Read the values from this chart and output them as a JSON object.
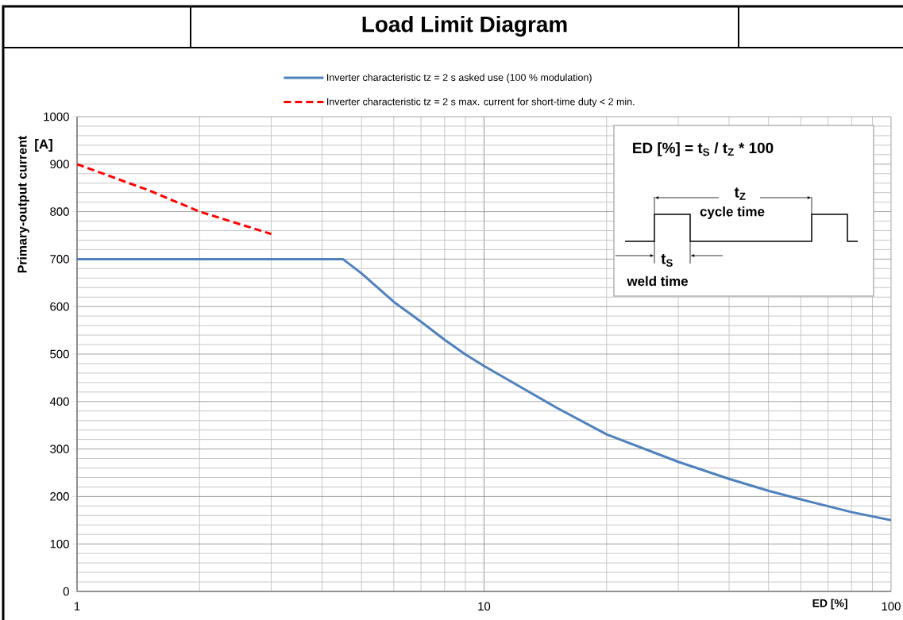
{
  "chart_data": {
    "type": "line",
    "title": "Load Limit Diagram",
    "xlabel": "ED [%]",
    "ylabel": "Primary-output current",
    "annotations": [
      "[A]",
      "ED [%]  = t$_{S}$ / t$_{Z}$ * 100",
      "t$_{Z}$",
      "cycle time",
      "t$_{S}$",
      "weld time"
    ],
    "log": "x",
    "xlim": [
      1,
      100
    ],
    "xticks": [
      1,
      10,
      100
    ],
    "ylim": [
      0,
      1000
    ],
    "yticks": [
      0,
      100,
      200,
      300,
      400,
      500,
      600,
      700,
      800,
      900,
      1000
    ],
    "grid": true,
    "legend": "top",
    "series": [
      {
        "name": "Inverter characteristic tz = 2 s asked use (100 % modulation)",
        "color": "#4f81bd",
        "line_style": "solid",
        "x": [
          1,
          4.5,
          5,
          6,
          7,
          8,
          9,
          10,
          15,
          20,
          30,
          40,
          50,
          60,
          80,
          100
        ],
        "values": [
          700,
          700,
          670,
          610,
          568,
          530,
          499,
          475,
          388,
          331,
          273,
          237,
          212,
          194,
          167,
          150
        ]
      },
      {
        "name": "Inverter characteristic tz = 2 s max. current for short-time duty < 2 min.",
        "color": "#ff0000",
        "line_style": "dashed",
        "x": [
          1,
          1.5,
          2,
          3
        ],
        "values": [
          900,
          845,
          800,
          753
        ]
      }
    ]
  }
}
